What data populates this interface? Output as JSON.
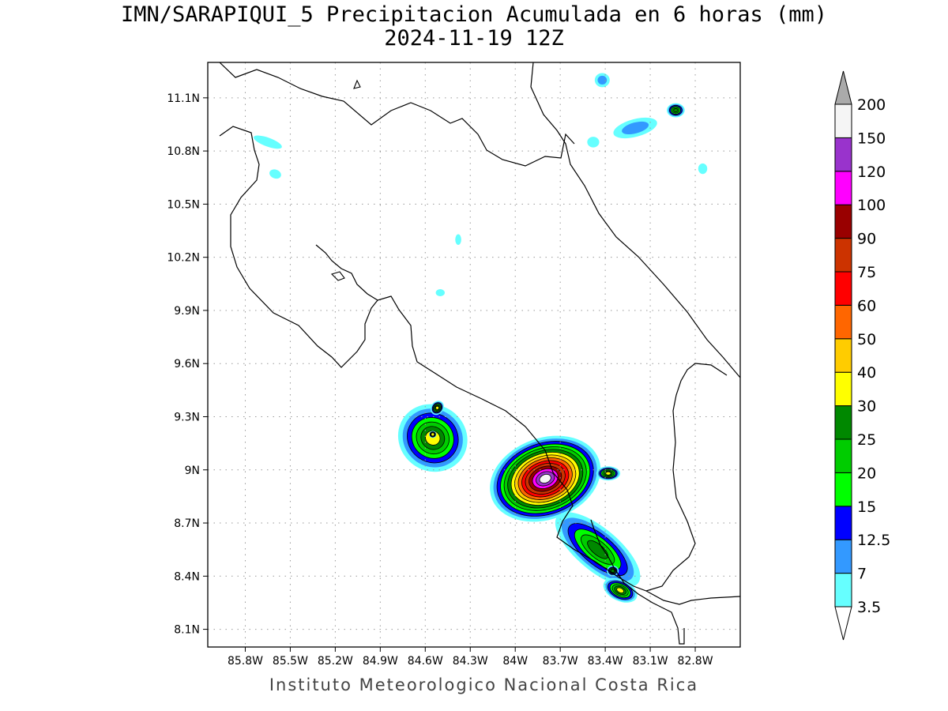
{
  "title": {
    "line1": "IMN/SARAPIQUI_5 Precipitacion Acumulada en 6 horas (mm)",
    "line2": "2024-11-19 12Z"
  },
  "footer": "Instituto Meteorologico Nacional Costa Rica",
  "map": {
    "lon_range": [
      -86.05,
      -82.5
    ],
    "lat_range": [
      8.0,
      11.3
    ],
    "lon_ticks": [
      {
        "value": -85.8,
        "label": "85.8W"
      },
      {
        "value": -85.5,
        "label": "85.5W"
      },
      {
        "value": -85.2,
        "label": "85.2W"
      },
      {
        "value": -84.9,
        "label": "84.9W"
      },
      {
        "value": -84.6,
        "label": "84.6W"
      },
      {
        "value": -84.3,
        "label": "84.3W"
      },
      {
        "value": -84.0,
        "label": "84W"
      },
      {
        "value": -83.7,
        "label": "83.7W"
      },
      {
        "value": -83.4,
        "label": "83.4W"
      },
      {
        "value": -83.1,
        "label": "83.1W"
      },
      {
        "value": -82.8,
        "label": "82.8W"
      }
    ],
    "lat_ticks": [
      {
        "value": 11.1,
        "label": "11.1N"
      },
      {
        "value": 10.8,
        "label": "10.8N"
      },
      {
        "value": 10.5,
        "label": "10.5N"
      },
      {
        "value": 10.2,
        "label": "10.2N"
      },
      {
        "value": 9.9,
        "label": "9.9N"
      },
      {
        "value": 9.6,
        "label": "9.6N"
      },
      {
        "value": 9.3,
        "label": "9.3N"
      },
      {
        "value": 9.0,
        "label": "9N"
      },
      {
        "value": 8.7,
        "label": "8.7N"
      },
      {
        "value": 8.4,
        "label": "8.4N"
      },
      {
        "value": 8.1,
        "label": "8.1N"
      }
    ],
    "grid": true
  },
  "colorbar": {
    "levels": [
      "3.5",
      "7",
      "12.5",
      "15",
      "20",
      "25",
      "30",
      "40",
      "50",
      "60",
      "75",
      "90",
      "100",
      "120",
      "150",
      "200"
    ],
    "colors": [
      "#66ffff",
      "#3399ff",
      "#0000ff",
      "#00ff00",
      "#00cc00",
      "#008800",
      "#ffff00",
      "#ffcc00",
      "#ff6600",
      "#ff0000",
      "#cc3300",
      "#990000",
      "#ff00ff",
      "#9933cc",
      "#f5f5f5",
      "#aaaaaa"
    ]
  },
  "precip_cells": [
    {
      "lon": -84.55,
      "lat": 9.18,
      "rx": 0.22,
      "ry": 0.2,
      "rot": -55,
      "max_mm": 30
    },
    {
      "lon": -84.52,
      "lat": 9.35,
      "rx": 0.05,
      "ry": 0.035,
      "rot": -55,
      "max_mm": 30
    },
    {
      "lon": -84.55,
      "lat": 9.2,
      "rx": 0.025,
      "ry": 0.02,
      "rot": 0,
      "max_mm": 30
    },
    {
      "lon": -83.8,
      "lat": 8.95,
      "rx": 0.38,
      "ry": 0.23,
      "rot": -20,
      "max_mm": 150
    },
    {
      "lon": -83.45,
      "lat": 8.55,
      "rx": 0.35,
      "ry": 0.12,
      "rot": 40,
      "max_mm": 25
    },
    {
      "lon": -83.3,
      "lat": 8.32,
      "rx": 0.12,
      "ry": 0.06,
      "rot": 25,
      "max_mm": 30
    },
    {
      "lon": -83.35,
      "lat": 8.43,
      "rx": 0.04,
      "ry": 0.03,
      "rot": 0,
      "max_mm": 25
    },
    {
      "lon": -83.38,
      "lat": 8.98,
      "rx": 0.08,
      "ry": 0.04,
      "rot": 0,
      "max_mm": 30
    },
    {
      "lon": -82.93,
      "lat": 11.03,
      "rx": 0.06,
      "ry": 0.04,
      "rot": 0,
      "max_mm": 25
    },
    {
      "lon": -83.2,
      "lat": 10.93,
      "rx": 0.15,
      "ry": 0.05,
      "rot": -15,
      "max_mm": 7
    },
    {
      "lon": -83.42,
      "lat": 11.2,
      "rx": 0.05,
      "ry": 0.04,
      "rot": 0,
      "max_mm": 7
    },
    {
      "lon": -85.65,
      "lat": 10.85,
      "rx": 0.1,
      "ry": 0.025,
      "rot": 20,
      "max_mm": 3.5
    },
    {
      "lon": -85.6,
      "lat": 10.67,
      "rx": 0.04,
      "ry": 0.025,
      "rot": 20,
      "max_mm": 3.5
    },
    {
      "lon": -84.5,
      "lat": 10.0,
      "rx": 0.03,
      "ry": 0.02,
      "rot": 0,
      "max_mm": 3.5
    },
    {
      "lon": -84.38,
      "lat": 10.3,
      "rx": 0.02,
      "ry": 0.03,
      "rot": 0,
      "max_mm": 3.5
    },
    {
      "lon": -83.48,
      "lat": 10.85,
      "rx": 0.04,
      "ry": 0.03,
      "rot": 0,
      "max_mm": 3.5
    },
    {
      "lon": -82.75,
      "lat": 10.7,
      "rx": 0.03,
      "ry": 0.03,
      "rot": 0,
      "max_mm": 3.5
    }
  ]
}
